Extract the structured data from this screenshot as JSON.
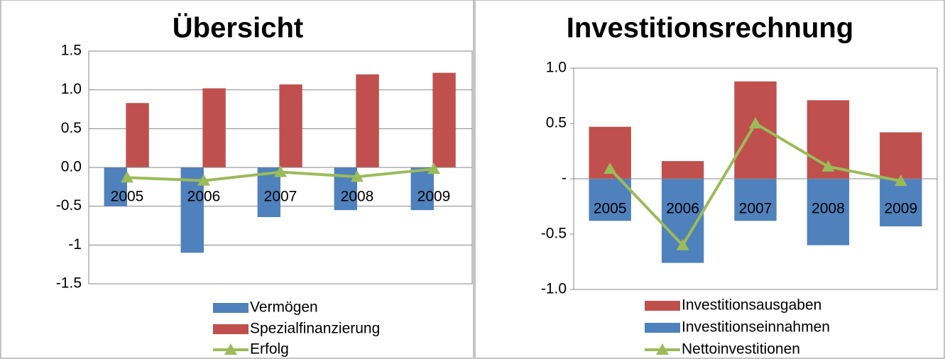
{
  "chart_data": [
    {
      "type": "bar",
      "title": "Übersicht",
      "stacked": false,
      "categories": [
        "2005",
        "2006",
        "2007",
        "2008",
        "2009"
      ],
      "series": [
        {
          "name": "Vermögen",
          "type": "bar",
          "color": "#4f81bd",
          "values": [
            -0.5,
            -1.1,
            -0.64,
            -0.55,
            -0.55
          ]
        },
        {
          "name": "Spezialfinanzierung",
          "type": "bar",
          "color": "#c0504d",
          "values": [
            0.83,
            1.02,
            1.07,
            1.2,
            1.22
          ]
        },
        {
          "name": "Erfolg",
          "type": "line",
          "color": "#9bbb59",
          "values": [
            -0.13,
            -0.17,
            -0.06,
            -0.12,
            -0.02
          ]
        }
      ],
      "ylim": [
        -1.5,
        1.5
      ],
      "yticks": [
        -1.5,
        -1,
        -0.5,
        {
          "value": 0,
          "label": "0.0"
        },
        0.5,
        {
          "value": 1,
          "label": "1.0"
        },
        1.5
      ],
      "grid": true,
      "legend": "bottom"
    },
    {
      "type": "bar",
      "title": "Investitionsrechnung",
      "stacked": true,
      "categories": [
        "2005",
        "2006",
        "2007",
        "2008",
        "2009"
      ],
      "series": [
        {
          "name": "Investitionsausgaben",
          "type": "bar",
          "color": "#c0504d",
          "values": [
            0.47,
            0.16,
            0.88,
            0.71,
            0.42
          ]
        },
        {
          "name": "Investitionseinnahmen",
          "type": "bar",
          "color": "#4f81bd",
          "values": [
            -0.38,
            -0.76,
            -0.38,
            -0.6,
            -0.43
          ]
        },
        {
          "name": "Nettoinvestitionen",
          "type": "line",
          "color": "#9bbb59",
          "values": [
            0.09,
            -0.6,
            0.5,
            0.11,
            -0.02
          ]
        }
      ],
      "ylim": [
        -1,
        1
      ],
      "yticks": [
        {
          "value": -1,
          "label": "-1.0"
        },
        -0.5,
        {
          "value": 0,
          "label": "-"
        },
        0.5,
        {
          "value": 1,
          "label": "1.0"
        }
      ],
      "grid": false,
      "legend": "bottom"
    }
  ]
}
